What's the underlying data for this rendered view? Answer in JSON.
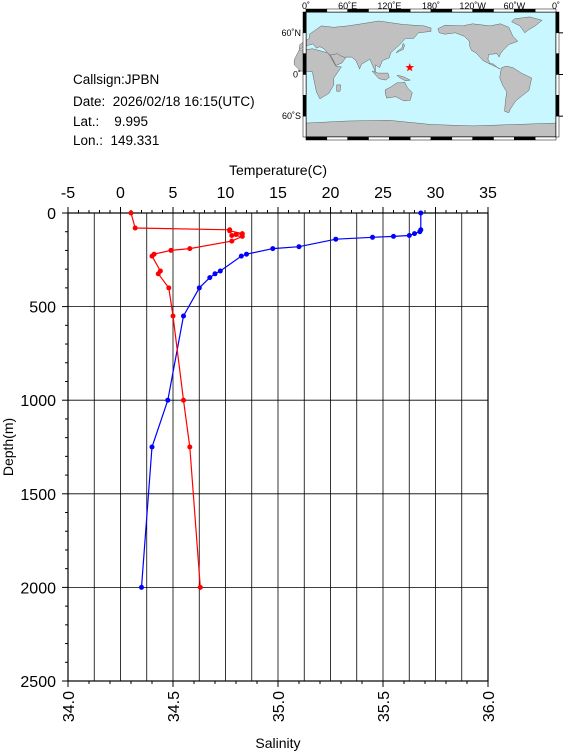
{
  "station": {
    "callsign": "Callsign:JPBN",
    "date": "Date:  2026/02/18 16:15(UTC)",
    "lat": "Lat.:    9.995",
    "lon": "Lon.:  149.331"
  },
  "map": {
    "lon_labels": [
      "0˚",
      "60˚E",
      "120˚E",
      "180˚",
      "120˚W",
      "60˚W",
      "0˚"
    ],
    "lat_labels": [
      "60˚N",
      "0˚",
      "60˚S"
    ],
    "marker": {
      "lon": 149.331,
      "lat": 9.995
    },
    "ocean_color": "#c8f7ff",
    "land_color": "#c0c0c0",
    "marker_color": "#ff0000"
  },
  "chart_data": {
    "type": "line",
    "ylabel": "Depth(m)",
    "ylim": [
      0,
      2500
    ],
    "y_ticks": [
      "0",
      "500",
      "1000",
      "1500",
      "2000",
      "2500"
    ],
    "top_axis": {
      "label": "Temperature(C)",
      "range": [
        -5,
        35
      ],
      "ticks": [
        "-5",
        "0",
        "5",
        "10",
        "15",
        "20",
        "25",
        "30",
        "35"
      ]
    },
    "bottom_axis": {
      "label": "Salinity",
      "range": [
        34.0,
        36.0
      ],
      "ticks": [
        "34.0",
        "34.5",
        "35.0",
        "35.5",
        "36.0"
      ]
    },
    "grid": true,
    "series": [
      {
        "quantity": "temperature",
        "axis": "top",
        "color": "#0000ff",
        "points": [
          [
            28.6,
            0
          ],
          [
            28.6,
            90
          ],
          [
            28.5,
            100
          ],
          [
            28.0,
            110
          ],
          [
            27.5,
            120
          ],
          [
            26.0,
            125
          ],
          [
            24.0,
            130
          ],
          [
            20.5,
            140
          ],
          [
            17.0,
            180
          ],
          [
            14.5,
            190
          ],
          [
            12.0,
            220
          ],
          [
            11.5,
            230
          ],
          [
            9.5,
            310
          ],
          [
            9.0,
            325
          ],
          [
            8.5,
            345
          ],
          [
            7.5,
            400
          ],
          [
            6.0,
            550
          ],
          [
            4.5,
            1000
          ],
          [
            3.0,
            1250
          ],
          [
            2.0,
            2000
          ]
        ]
      },
      {
        "quantity": "salinity",
        "axis": "bottom",
        "color": "#ff0000",
        "points": [
          [
            34.3,
            0
          ],
          [
            34.32,
            80
          ],
          [
            34.77,
            90
          ],
          [
            34.77,
            95
          ],
          [
            34.83,
            110
          ],
          [
            34.8,
            115
          ],
          [
            34.78,
            120
          ],
          [
            34.83,
            125
          ],
          [
            34.78,
            150
          ],
          [
            34.58,
            190
          ],
          [
            34.49,
            200
          ],
          [
            34.41,
            220
          ],
          [
            34.4,
            230
          ],
          [
            34.44,
            310
          ],
          [
            34.43,
            325
          ],
          [
            34.48,
            400
          ],
          [
            34.5,
            550
          ],
          [
            34.55,
            1000
          ],
          [
            34.58,
            1250
          ],
          [
            34.63,
            2000
          ]
        ]
      }
    ]
  }
}
